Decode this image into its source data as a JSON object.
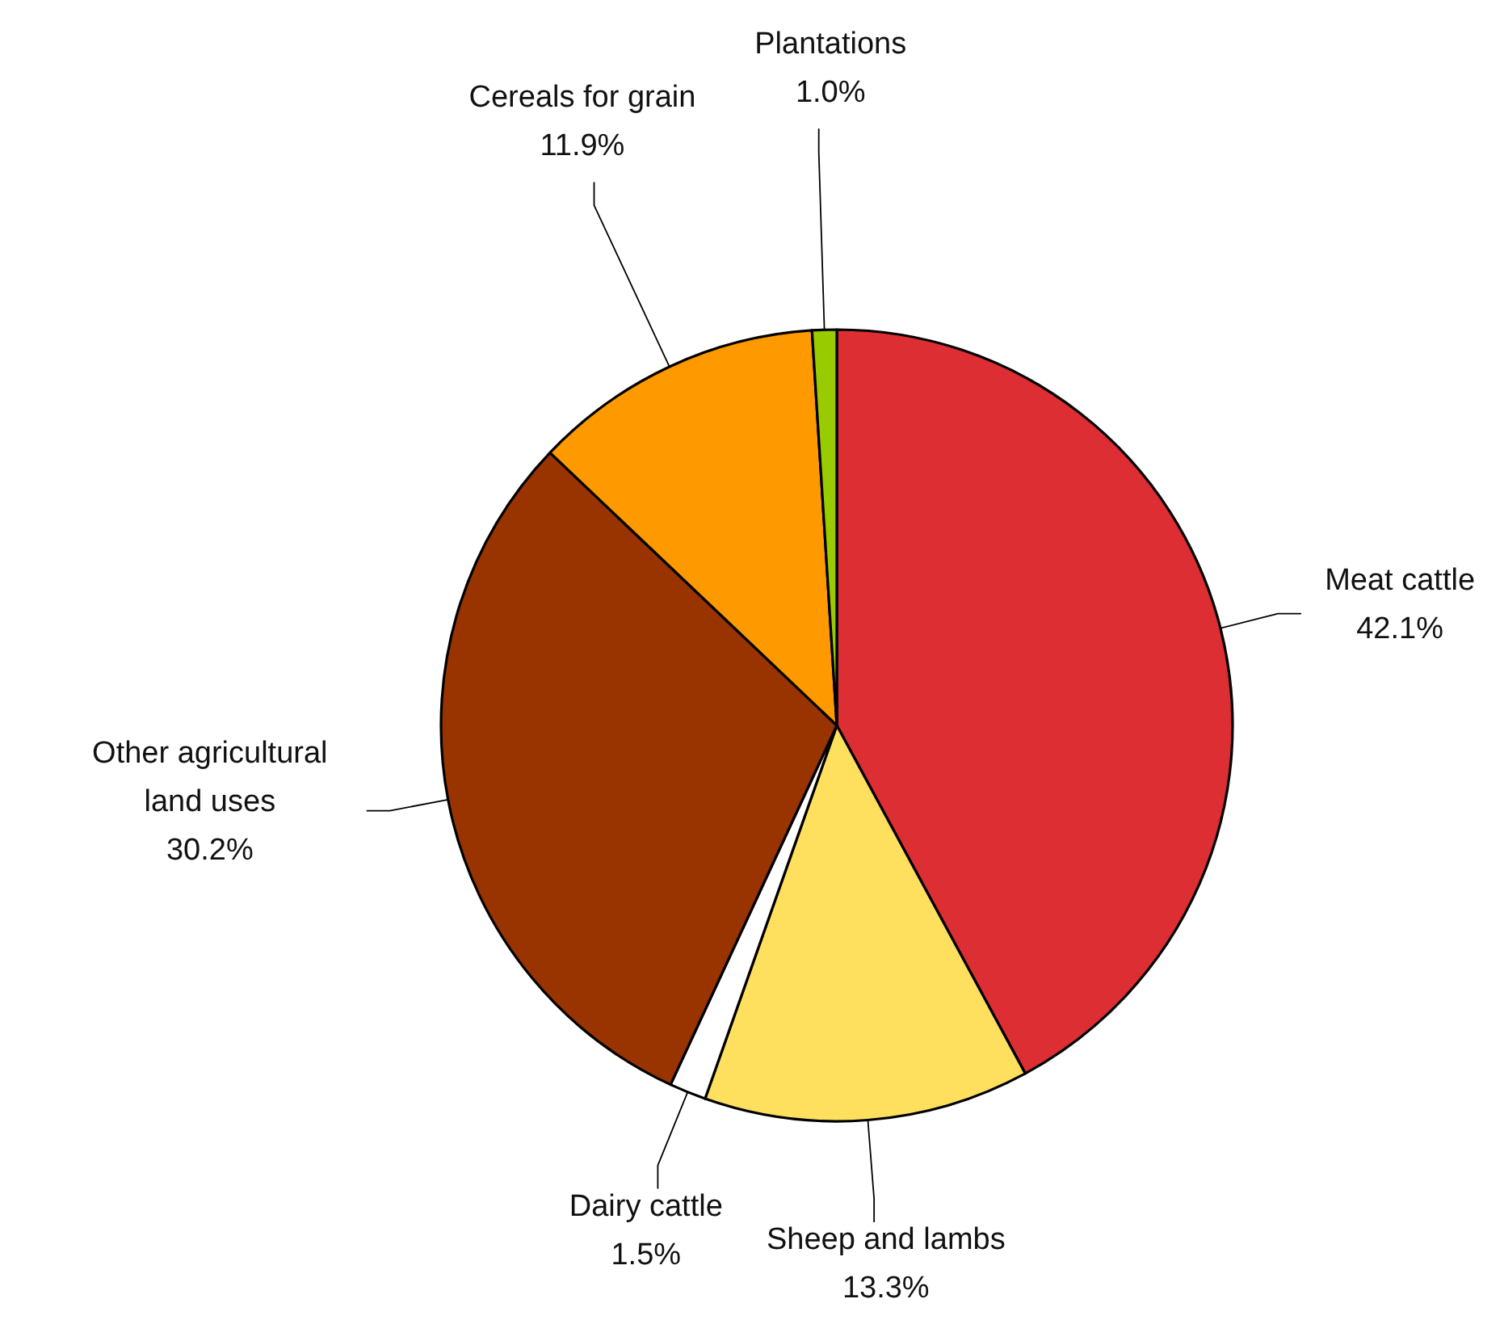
{
  "chart_data": {
    "type": "pie",
    "categories": [
      "Meat cattle",
      "Sheep and lambs",
      "Dairy cattle",
      "Other agricultural land uses",
      "Cereals for grain",
      "Plantations"
    ],
    "values": [
      42.1,
      13.3,
      1.5,
      30.2,
      11.9,
      1.0
    ],
    "value_labels": [
      "42.1%",
      "13.3%",
      "1.5%",
      "30.2%",
      "11.9%",
      "1.0%"
    ],
    "colors": [
      "#dd2e33",
      "#ffdf5e",
      "#ffffff",
      "#993300",
      "#ff9900",
      "#99cc00"
    ]
  }
}
